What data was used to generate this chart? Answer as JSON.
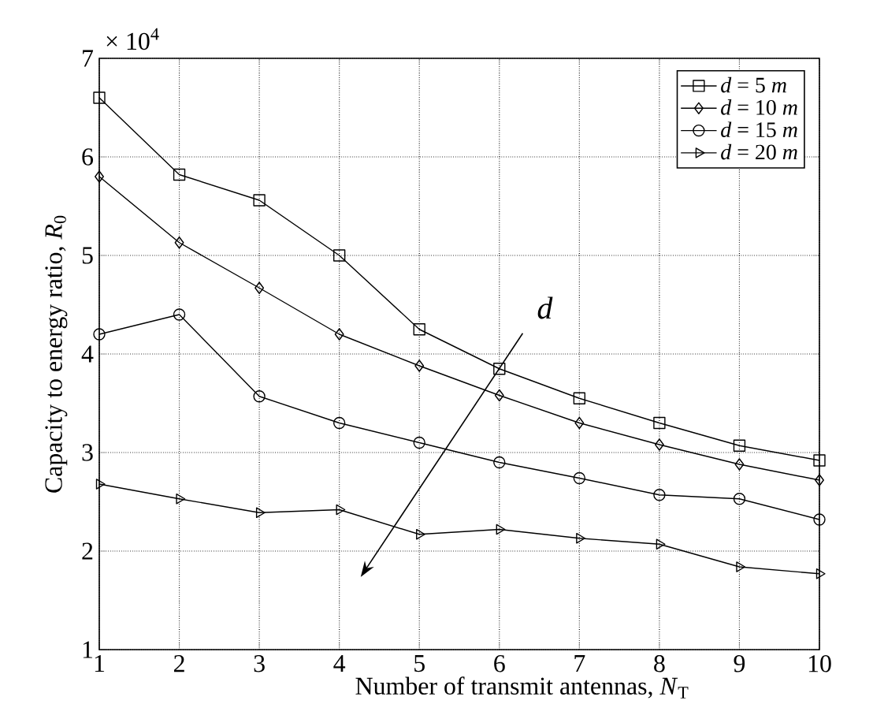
{
  "chart_data": {
    "type": "line",
    "xlabel": "Number of transmit antennas, *N*$_{T}$",
    "ylabel": "Capacity to energy ratio, *R*$_{0}$",
    "x": [
      1,
      2,
      3,
      4,
      5,
      6,
      7,
      8,
      9,
      10
    ],
    "series": [
      {
        "name": "*d* = 5 *m*",
        "color": "#000000",
        "marker": "square",
        "values": [
          6.6,
          5.82,
          5.56,
          5.0,
          4.25,
          3.85,
          3.55,
          3.3,
          3.07,
          2.92
        ]
      },
      {
        "name": "*d* = 10 *m*",
        "color": "#000000",
        "marker": "diamond",
        "values": [
          5.8,
          5.13,
          4.67,
          4.2,
          3.88,
          3.58,
          3.3,
          3.08,
          2.88,
          2.72
        ]
      },
      {
        "name": "*d* = 15 *m*",
        "color": "#000000",
        "marker": "circle",
        "values": [
          4.2,
          4.4,
          3.57,
          3.3,
          3.1,
          2.9,
          2.74,
          2.57,
          2.53,
          2.32
        ]
      },
      {
        "name": "*d* = 20 *m*",
        "color": "#000000",
        "marker": "triangle",
        "values": [
          2.68,
          2.53,
          2.39,
          2.42,
          2.17,
          2.22,
          2.13,
          2.07,
          1.84,
          1.77
        ]
      }
    ],
    "xlim": [
      1,
      10
    ],
    "xticks": [
      1,
      2,
      3,
      4,
      5,
      6,
      7,
      8,
      9,
      10
    ],
    "ylim": [
      1,
      7
    ],
    "yticks": [
      1,
      2,
      3,
      4,
      5,
      6,
      7
    ],
    "annotations": [
      "× 10$^{4}$",
      "*d*"
    ],
    "grid": true,
    "legend": "top right",
    "line_style": "solid"
  }
}
